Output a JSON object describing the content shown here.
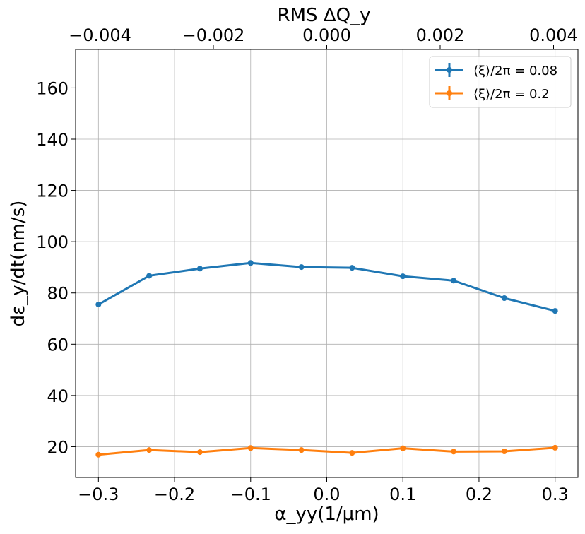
{
  "chart_data": {
    "type": "line",
    "xlabel": "α_yy(1/μm)",
    "ylabel": "dε_y/dt(nm/s)",
    "x2label": "RMS ΔQ_y",
    "xlim": [
      -0.33,
      0.33
    ],
    "ylim": [
      8,
      175
    ],
    "x2lim": [
      -0.00443,
      0.00443
    ],
    "xticks": [
      -0.3,
      -0.2,
      -0.1,
      0.0,
      0.1,
      0.2,
      0.3
    ],
    "xtick_labels": [
      "−0.3",
      "−0.2",
      "−0.1",
      "0.0",
      "0.1",
      "0.2",
      "0.3"
    ],
    "yticks": [
      20,
      40,
      60,
      80,
      100,
      120,
      140,
      160
    ],
    "ytick_labels": [
      "20",
      "40",
      "60",
      "80",
      "100",
      "120",
      "140",
      "160"
    ],
    "x2ticks": [
      -0.004,
      -0.002,
      0.0,
      0.002,
      0.004
    ],
    "x2tick_labels": [
      "−0.004",
      "−0.002",
      "0.000",
      "0.002",
      "0.004"
    ],
    "grid": true,
    "legend_position": "top-right",
    "x": [
      -0.3,
      -0.2333,
      -0.1667,
      -0.1,
      -0.0333,
      0.0333,
      0.1,
      0.1667,
      0.2333,
      0.3
    ],
    "series": [
      {
        "name": "⟨ξ⟩/2π = 0.08",
        "color": "#1f77b4",
        "values": [
          75.5,
          86.7,
          89.5,
          91.7,
          90.1,
          89.8,
          86.5,
          84.8,
          78.0,
          73.0
        ]
      },
      {
        "name": "⟨ξ⟩/2π = 0.2",
        "color": "#ff7f0e",
        "values": [
          16.9,
          18.7,
          17.9,
          19.5,
          18.7,
          17.6,
          19.4,
          18.1,
          18.2,
          19.6
        ]
      }
    ]
  }
}
